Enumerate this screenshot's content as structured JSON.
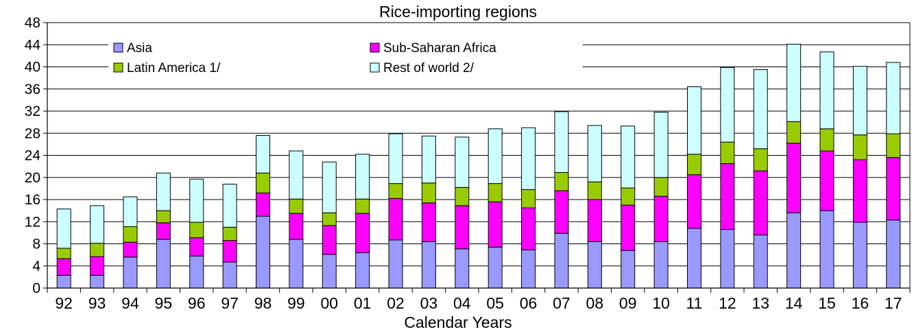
{
  "chart_data": {
    "type": "bar",
    "stacked": true,
    "title": "Rice-importing regions",
    "xlabel": "Calendar Years",
    "ylabel": "",
    "ylim": [
      0,
      48
    ],
    "yticks": [
      0,
      4,
      8,
      12,
      16,
      20,
      24,
      28,
      32,
      36,
      40,
      44,
      48
    ],
    "grid": true,
    "legend_position": "top",
    "categories": [
      "92",
      "93",
      "94",
      "95",
      "96",
      "97",
      "98",
      "99",
      "00",
      "01",
      "02",
      "03",
      "04",
      "05",
      "06",
      "07",
      "08",
      "09",
      "10",
      "11",
      "12",
      "13",
      "14",
      "15",
      "16",
      "17"
    ],
    "series": [
      {
        "name": "Asia",
        "color": "#9999ff",
        "values": [
          2.3,
          2.3,
          5.6,
          8.8,
          5.8,
          4.7,
          13.0,
          8.8,
          6.1,
          6.4,
          8.7,
          8.4,
          7.1,
          7.4,
          6.9,
          9.9,
          8.4,
          6.8,
          8.4,
          10.8,
          10.6,
          9.6,
          13.6,
          14.0,
          11.9,
          12.3
        ]
      },
      {
        "name": "Sub-Saharan Africa",
        "color": "#ff00ff",
        "values": [
          3.0,
          3.4,
          2.7,
          3.0,
          3.3,
          3.9,
          4.2,
          4.7,
          5.2,
          7.1,
          7.5,
          7.0,
          7.8,
          8.2,
          7.6,
          7.7,
          7.6,
          8.2,
          8.2,
          9.7,
          11.9,
          11.6,
          12.6,
          10.8,
          11.3,
          11.3
        ]
      },
      {
        "name": "Latin America 1/",
        "color": "#99cc00",
        "values": [
          1.9,
          2.4,
          2.8,
          2.2,
          2.8,
          2.4,
          3.6,
          2.6,
          2.3,
          2.6,
          2.7,
          3.6,
          3.3,
          3.3,
          3.3,
          3.3,
          3.2,
          3.1,
          3.4,
          3.7,
          3.9,
          4.0,
          3.9,
          4.0,
          4.5,
          4.3
        ]
      },
      {
        "name": "Rest of world 2/",
        "color": "#ccffff",
        "values": [
          7.1,
          6.8,
          5.4,
          6.8,
          7.8,
          7.8,
          6.8,
          8.7,
          9.2,
          8.1,
          9.0,
          8.5,
          9.1,
          9.9,
          11.2,
          11.0,
          10.2,
          11.2,
          11.8,
          12.2,
          13.5,
          14.3,
          14.0,
          13.9,
          12.4,
          12.9
        ]
      }
    ]
  }
}
